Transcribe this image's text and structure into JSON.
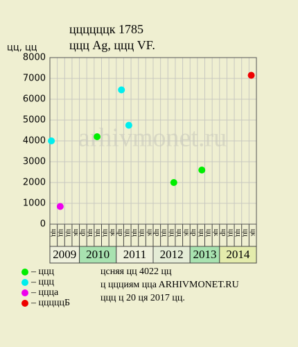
{
  "chart_data": {
    "type": "scatter",
    "title": "ццццццк 1785",
    "subtitle": "ццц Ag, ццц VF.",
    "y_label": "цц, цц",
    "watermark": "arhivmonet.ru",
    "ylim": [
      0,
      8000
    ],
    "yticks": [
      0,
      1000,
      2000,
      3000,
      4000,
      5000,
      6000,
      7000,
      8000
    ],
    "xlim": [
      0,
      28
    ],
    "grid": true,
    "years": [
      {
        "label": "2009",
        "color": "#eef0dc",
        "columns": [
          "цц",
          "цц",
          "цц",
          "цк"
        ]
      },
      {
        "label": "2010",
        "color": "#a8e2b0",
        "columns": [
          "цр",
          "цц",
          "цц",
          "цц",
          "цк"
        ]
      },
      {
        "label": "2011",
        "color": "#eef0dc",
        "columns": [
          "цр",
          "цц",
          "цц",
          "цц",
          "цк"
        ]
      },
      {
        "label": "2012",
        "color": "#e4ecd6",
        "columns": [
          "цр",
          "цц",
          "цц",
          "цц",
          "цк"
        ]
      },
      {
        "label": "2013",
        "color": "#a8e2b0",
        "columns": [
          "цр",
          "цц",
          "цц",
          "цк"
        ]
      },
      {
        "label": "2014",
        "color": "#e4ecac",
        "columns": [
          "цр",
          "цц",
          "цц",
          "цц",
          "цк"
        ]
      }
    ],
    "series": [
      {
        "name": "– ццц",
        "color": "#00ee00",
        "x": [
          6.4,
          16.8,
          20.6
        ],
        "values": [
          4200,
          2000,
          2600
        ]
      },
      {
        "name": "– ццц",
        "color": "#00eeee",
        "x": [
          0.2,
          9.7,
          10.7
        ],
        "values": [
          4000,
          6450,
          4750
        ]
      },
      {
        "name": "– ццца",
        "color": "#ee00ee",
        "x": [
          1.4
        ],
        "values": [
          850
        ]
      },
      {
        "name": "– цццццБ",
        "color": "#ee0000",
        "x": [
          27.3
        ],
        "values": [
          7150
        ]
      }
    ],
    "notes": [
      "цcняя цц 4022 цц",
      "ц ццциям ццa ARHIVMONET.RU",
      "ццц ц 20 ця 2017 цц."
    ]
  }
}
